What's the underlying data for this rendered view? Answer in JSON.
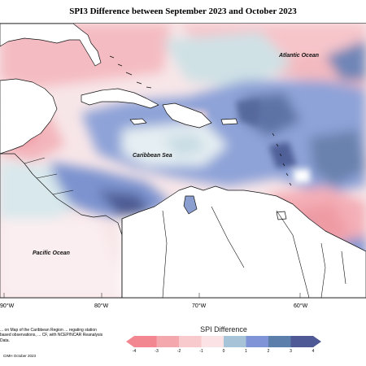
{
  "title": "SPI3 Difference between September 2023 and October 2023",
  "map": {
    "labels": {
      "atlantic": "Atlantic Ocean",
      "caribbean": "Caribbean Sea",
      "pacific": "Pacific Ocean"
    },
    "longitudes": [
      "90°W",
      "80°W",
      "70°W",
      "60°W"
    ]
  },
  "legend": {
    "title": "SPI Difference",
    "ticks": [
      "-4",
      "-3",
      "-2",
      "-1",
      "0",
      "1",
      "2",
      "3",
      "4"
    ],
    "colors": [
      "#f28791",
      "#f5a7ae",
      "#f8c9cd",
      "#fbe3e5",
      "#d4e8ea",
      "#a7c3d8",
      "#7f94d6",
      "#5c7eaa",
      "#4f5996"
    ]
  },
  "footer": {
    "description": "... on Map of the Caribbean Region ... regating station based observations, ... CF, with NCEP/NCAR Reanalysis Data.",
    "credit": "CIMH October 2023"
  }
}
